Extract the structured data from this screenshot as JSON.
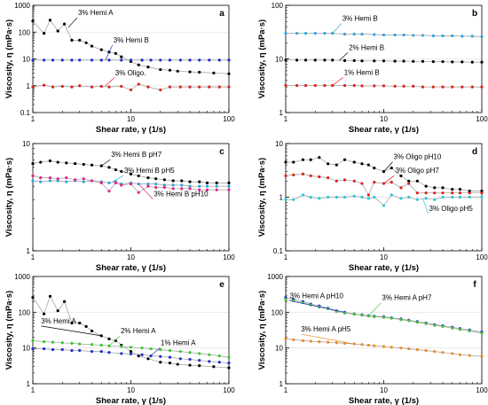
{
  "chart_data": [
    {
      "type": "line",
      "panel_label": "a",
      "xlabel": "Shear rate, γ (1/s)",
      "ylabel": "Viscosity, η (mPa·s)",
      "x_scale": "log",
      "y_scale": "log",
      "xlim": [
        1,
        100
      ],
      "ylim": [
        0.1,
        1000
      ],
      "x_ticks": [
        "1",
        "10",
        "100"
      ],
      "y_ticks": [
        "0.1",
        "1",
        "10",
        "100",
        "1000"
      ],
      "grid": "horizontal",
      "series": [
        {
          "name": "3% Hemi A",
          "color": "#000000",
          "x": [
            1,
            1.3,
            1.5,
            1.8,
            2.1,
            2.5,
            3,
            3.5,
            4,
            5,
            6,
            7,
            8,
            10,
            12,
            15,
            20,
            25,
            30,
            40,
            50,
            70,
            100
          ],
          "y": [
            260,
            90,
            280,
            110,
            200,
            50,
            50,
            40,
            30,
            22,
            18,
            16,
            12,
            8,
            6,
            5,
            4,
            3.8,
            3.5,
            3.3,
            3.2,
            3,
            2.8
          ]
        },
        {
          "name": "3% Hemi B",
          "color": "#1f2fd1",
          "x": [
            1,
            1.3,
            1.6,
            2,
            2.5,
            3,
            4,
            5,
            6,
            8,
            10,
            13,
            16,
            20,
            25,
            32,
            40,
            50,
            63,
            80,
            100
          ],
          "y": [
            9,
            9,
            9,
            9,
            9,
            9,
            9,
            9,
            9,
            9,
            9,
            9,
            9,
            9,
            9,
            9,
            9,
            9,
            9,
            9,
            9
          ]
        },
        {
          "name": "3% Oligo.",
          "color": "#e0201c",
          "x": [
            1,
            1.3,
            1.6,
            2,
            2.5,
            3,
            4,
            5,
            6,
            8,
            10,
            12,
            15,
            20,
            25,
            32,
            40,
            50,
            63,
            80,
            100
          ],
          "y": [
            0.9,
            1.05,
            0.9,
            0.95,
            0.9,
            1.0,
            0.9,
            0.95,
            0.9,
            0.95,
            0.7,
            1.15,
            0.9,
            0.7,
            0.9,
            0.9,
            0.9,
            0.9,
            0.9,
            0.9,
            0.9
          ]
        }
      ],
      "annotations": [
        "3% Hemi A",
        "3% Hemi B",
        "3% Oligo."
      ]
    },
    {
      "type": "line",
      "panel_label": "b",
      "xlabel": "Shear rate, γ (1/s)",
      "ylabel": "Viscosity, η (mPa·s)",
      "x_scale": "log",
      "y_scale": "log",
      "xlim": [
        1,
        100
      ],
      "ylim": [
        1,
        100
      ],
      "x_ticks": [
        "1",
        "10",
        "100"
      ],
      "y_ticks": [
        "1",
        "10",
        "100"
      ],
      "grid": "horizontal",
      "series": [
        {
          "name": "3% Hemi B",
          "color": "#29a8e0",
          "x": [
            1,
            1.3,
            1.6,
            2,
            2.5,
            3,
            4,
            5,
            6,
            8,
            10,
            13,
            16,
            20,
            25,
            32,
            40,
            50,
            63,
            80,
            100
          ],
          "y": [
            30,
            30,
            30,
            30,
            30,
            30,
            29,
            29,
            29,
            28.5,
            28,
            28,
            28,
            27.5,
            27.5,
            27,
            27,
            27,
            26.5,
            26.5,
            26
          ]
        },
        {
          "name": "2% Hemi B",
          "color": "#000000",
          "x": [
            1,
            1.3,
            1.6,
            2,
            2.5,
            3,
            4,
            5,
            6,
            8,
            10,
            13,
            16,
            20,
            25,
            32,
            40,
            50,
            63,
            80,
            100
          ],
          "y": [
            9.5,
            9.5,
            9.5,
            9.5,
            9.5,
            9.5,
            9.3,
            9.3,
            9.2,
            9.2,
            9.2,
            9.1,
            9.1,
            9.0,
            9.0,
            8.9,
            8.9,
            8.8,
            8.8,
            8.7,
            8.7
          ]
        },
        {
          "name": "1% Hemi B",
          "color": "#e0201c",
          "x": [
            1,
            1.3,
            1.6,
            2,
            2.5,
            3,
            4,
            5,
            6,
            8,
            10,
            13,
            16,
            20,
            25,
            32,
            40,
            50,
            63,
            80,
            100
          ],
          "y": [
            3.2,
            3.2,
            3.2,
            3.2,
            3.2,
            3.2,
            3.2,
            3.2,
            3.15,
            3.15,
            3.15,
            3.1,
            3.1,
            3.1,
            3.0,
            3.0,
            3.0,
            3.0,
            3.0,
            3.0,
            3.0
          ]
        }
      ],
      "annotations": [
        "3% Hemi B",
        "2% Hemi B",
        "1% Hemi B"
      ]
    },
    {
      "type": "line",
      "panel_label": "c",
      "xlabel": "Shear rate, γ (1/s)",
      "ylabel": "Viscosity, η (mPa·s)",
      "x_scale": "log",
      "y_scale": "log",
      "xlim": [
        1,
        100
      ],
      "ylim": [
        1,
        10
      ],
      "x_ticks": [
        "1",
        "10",
        "100"
      ],
      "y_ticks": [
        "1",
        "10"
      ],
      "grid": "none",
      "series": [
        {
          "name": "3% Hemi B pH7",
          "color": "#000000",
          "x": [
            1,
            1.2,
            1.5,
            1.8,
            2.2,
            2.7,
            3.3,
            4,
            5,
            6,
            7,
            8,
            10,
            12,
            15,
            18,
            22,
            27,
            33,
            40,
            50,
            60,
            75,
            100
          ],
          "y": [
            6.5,
            6.7,
            6.9,
            6.7,
            6.6,
            6.5,
            6.4,
            6.3,
            6.2,
            6.0,
            5.7,
            5.5,
            5.2,
            5.0,
            4.8,
            4.7,
            4.6,
            4.5,
            4.5,
            4.4,
            4.4,
            4.3,
            4.3,
            4.3
          ]
        },
        {
          "name": "3% Hemi B pH5",
          "color": "#29a8e0",
          "x": [
            1,
            1.2,
            1.5,
            1.8,
            2.2,
            2.7,
            3.3,
            4,
            5,
            6,
            7,
            8,
            10,
            12,
            15,
            18,
            22,
            27,
            33,
            40,
            50,
            60,
            75,
            100
          ],
          "y": [
            4.5,
            4.4,
            4.5,
            4.5,
            4.4,
            4.5,
            4.4,
            4.5,
            4.4,
            4.3,
            4.4,
            4.2,
            4.3,
            4.2,
            4.2,
            4.2,
            4.1,
            4.1,
            4.1,
            4.0,
            4.0,
            4.0,
            4.0,
            4.0
          ]
        },
        {
          "name": "3% Hemi B pH10",
          "color": "#e8208c",
          "x": [
            1,
            1.2,
            1.5,
            1.8,
            2.2,
            2.7,
            3.3,
            4,
            5,
            6,
            7,
            8,
            10,
            12,
            15,
            18,
            22,
            27,
            33,
            40,
            50,
            60,
            75,
            100
          ],
          "y": [
            5.0,
            4.8,
            4.8,
            4.7,
            4.8,
            4.6,
            4.7,
            4.5,
            4.3,
            3.6,
            4.3,
            4.1,
            4.2,
            3.5,
            4.0,
            3.9,
            3.9,
            3.8,
            3.8,
            3.8,
            3.7,
            3.7,
            3.7,
            3.7
          ]
        }
      ],
      "annotations": [
        "3% Hemi B pH7",
        "3% Hemi B pH5",
        "3% Hemi B pH10"
      ]
    },
    {
      "type": "line",
      "panel_label": "d",
      "xlabel": "Shear rate, γ (1/s)",
      "ylabel": "Viscosity, η (mPa·s)",
      "x_scale": "log",
      "y_scale": "log",
      "xlim": [
        1,
        100
      ],
      "ylim": [
        0.1,
        10
      ],
      "x_ticks": [
        "1",
        "10",
        "100"
      ],
      "y_ticks": [
        "0.1",
        "1",
        "10"
      ],
      "grid": "horizontal",
      "series": [
        {
          "name": "3% Oligo pH10",
          "color": "#000000",
          "x": [
            1,
            1.2,
            1.5,
            1.8,
            2.2,
            2.7,
            3.3,
            4,
            5,
            6,
            7,
            8,
            10,
            12,
            15,
            18,
            22,
            27,
            33,
            40,
            50,
            60,
            75,
            100
          ],
          "y": [
            4.5,
            4.5,
            5.0,
            5.0,
            5.5,
            4.2,
            4.0,
            5.0,
            4.5,
            4.2,
            4.0,
            3.5,
            3.0,
            3.5,
            2.5,
            2.0,
            2.0,
            1.6,
            1.5,
            1.5,
            1.4,
            1.4,
            1.3,
            1.3
          ]
        },
        {
          "name": "3% Oligo pH7",
          "color": "#e0201c",
          "x": [
            1,
            1.2,
            1.5,
            1.8,
            2.2,
            2.7,
            3.3,
            4,
            5,
            6,
            7,
            8,
            10,
            12,
            15,
            18,
            22,
            27,
            33,
            40,
            50,
            60,
            75,
            100
          ],
          "y": [
            2.5,
            2.6,
            2.7,
            2.5,
            2.4,
            2.3,
            2.0,
            2.1,
            2.0,
            1.8,
            1.1,
            1.9,
            1.8,
            1.9,
            1.5,
            1.8,
            1.2,
            1.2,
            1.2,
            1.2,
            1.2,
            1.2,
            1.2,
            1.2
          ]
        },
        {
          "name": "3% Oligo pH5",
          "color": "#29c8d8",
          "x": [
            1,
            1.2,
            1.5,
            1.8,
            2.2,
            2.7,
            3.3,
            4,
            5,
            6,
            7,
            8,
            10,
            12,
            15,
            18,
            22,
            27,
            33,
            40,
            50,
            60,
            75,
            100
          ],
          "y": [
            0.9,
            0.9,
            1.1,
            1.0,
            0.95,
            1.0,
            1.0,
            1.0,
            1.05,
            1.0,
            0.95,
            1.0,
            0.7,
            1.1,
            0.95,
            1.0,
            0.9,
            0.95,
            0.9,
            1.0,
            1.0,
            1.0,
            1.0,
            1.0
          ]
        }
      ],
      "annotations": [
        "3% Oligo pH10",
        "3% Oligo pH7",
        "3% Oligo pH5"
      ]
    },
    {
      "type": "line",
      "panel_label": "e",
      "xlabel": "Shear rate, γ (1/s)",
      "ylabel": "Viscosity, η (mPa·s)",
      "x_scale": "log",
      "y_scale": "log",
      "xlim": [
        1,
        100
      ],
      "ylim": [
        1,
        1000
      ],
      "x_ticks": [
        "1",
        "10",
        "100"
      ],
      "y_ticks": [
        "1",
        "10",
        "100",
        "1000"
      ],
      "grid": "horizontal",
      "series": [
        {
          "name": "3% Hemi A",
          "color": "#000000",
          "x": [
            1,
            1.3,
            1.5,
            1.8,
            2.1,
            2.5,
            3,
            3.5,
            4,
            5,
            6,
            7,
            8,
            10,
            12,
            15,
            20,
            25,
            30,
            40,
            50,
            70,
            100
          ],
          "y": [
            260,
            90,
            280,
            110,
            200,
            50,
            50,
            40,
            30,
            22,
            18,
            16,
            12,
            8,
            6,
            5,
            4,
            3.8,
            3.5,
            3.3,
            3.2,
            3,
            2.8
          ]
        },
        {
          "name": "2% Hemi A",
          "color": "#3cc82c",
          "x": [
            1,
            1.3,
            1.6,
            2,
            2.5,
            3,
            4,
            5,
            6,
            8,
            10,
            13,
            16,
            20,
            25,
            32,
            40,
            50,
            63,
            80,
            100
          ],
          "y": [
            16,
            15,
            14.5,
            14,
            13.5,
            13,
            12.5,
            12,
            11.5,
            11,
            10.5,
            10,
            9.5,
            9,
            8.5,
            8,
            7.5,
            7,
            6.5,
            6,
            5.5
          ]
        },
        {
          "name": "1% Hemi A",
          "color": "#1f2fd1",
          "x": [
            1,
            1.3,
            1.6,
            2,
            2.5,
            3,
            4,
            5,
            6,
            8,
            10,
            13,
            16,
            20,
            25,
            32,
            40,
            50,
            63,
            80,
            100
          ],
          "y": [
            9.5,
            9.5,
            9,
            9,
            8.5,
            8.5,
            8,
            8,
            7.5,
            7,
            6.8,
            6.5,
            6,
            5.8,
            5.5,
            5,
            4.8,
            4.5,
            4.2,
            4,
            3.8
          ]
        }
      ],
      "annotations": [
        "3% Hemi A",
        "2% Hemi A",
        "1% Hemi A"
      ]
    },
    {
      "type": "line",
      "panel_label": "f",
      "xlabel": "Shear rate, γ (1/s)",
      "ylabel": "Viscosity, η (mPa·s)",
      "x_scale": "log",
      "y_scale": "log",
      "xlim": [
        1,
        100
      ],
      "ylim": [
        1,
        1000
      ],
      "x_ticks": [
        "1",
        "10",
        "100"
      ],
      "y_ticks": [
        "1",
        "10",
        "100",
        "1000"
      ],
      "grid": "horizontal",
      "series": [
        {
          "name": "3% Hemi A pH10",
          "color": "#1f2fd1",
          "x": [
            1,
            1.2,
            1.5,
            1.8,
            2.2,
            2.7,
            3.3,
            4,
            5,
            6,
            7,
            8,
            10,
            12,
            15,
            18,
            22,
            27,
            33,
            40,
            50,
            60,
            75,
            100
          ],
          "y": [
            260,
            230,
            200,
            170,
            150,
            130,
            110,
            100,
            90,
            85,
            80,
            78,
            75,
            70,
            65,
            60,
            55,
            50,
            45,
            42,
            38,
            35,
            32,
            28
          ]
        },
        {
          "name": "3% Hemi A pH7",
          "color": "#3cc82c",
          "x": [
            1,
            1.2,
            1.5,
            1.8,
            2.2,
            2.7,
            3.3,
            4,
            5,
            6,
            7,
            8,
            10,
            12,
            15,
            18,
            22,
            27,
            33,
            40,
            50,
            60,
            75,
            100
          ],
          "y": [
            230,
            210,
            185,
            160,
            140,
            125,
            105,
            95,
            88,
            82,
            78,
            75,
            72,
            68,
            62,
            58,
            52,
            48,
            43,
            40,
            36,
            33,
            30,
            26
          ]
        },
        {
          "name": "3% Hemi A pH5",
          "color": "#f08a24",
          "x": [
            1,
            1.2,
            1.5,
            1.8,
            2.2,
            2.7,
            3.3,
            4,
            5,
            6,
            7,
            8,
            10,
            12,
            15,
            18,
            22,
            27,
            33,
            40,
            50,
            60,
            75,
            100
          ],
          "y": [
            18,
            17,
            16,
            15.5,
            15,
            14.5,
            14,
            13.5,
            13,
            12.5,
            12,
            11.5,
            11,
            10.5,
            10,
            9.5,
            9,
            8.5,
            8,
            7.5,
            7,
            6.5,
            6.2,
            5.8
          ]
        }
      ],
      "annotations": [
        "3% Hemi A pH10",
        "3% Hemi A pH7",
        "3% Hemi A pH5"
      ]
    }
  ]
}
